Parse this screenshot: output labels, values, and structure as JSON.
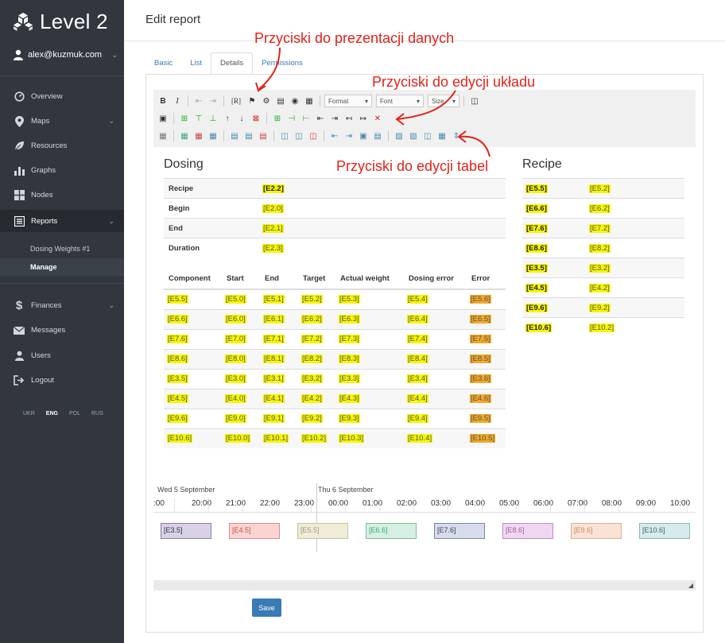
{
  "app": {
    "title": "Level 2",
    "user": "alex@kuzmuk.com"
  },
  "nav": {
    "overview": "Overview",
    "maps": "Maps",
    "resources": "Resources",
    "graphs": "Graphs",
    "nodes": "Nodes",
    "reports": "Reports",
    "sub_dosing": "Dosing Weights #1",
    "sub_manage": "Manage",
    "finances": "Finances",
    "messages": "Messages",
    "users": "Users",
    "logout": "Logout",
    "langs": [
      "UKR",
      "ENG",
      "POL",
      "RUS"
    ]
  },
  "page": {
    "title": "Edit report"
  },
  "tabs": [
    "Basic",
    "List",
    "Details",
    "Permissions"
  ],
  "toolbar": {
    "format": "Format",
    "font": "Font",
    "size": "Size",
    "r_btn": "[R]"
  },
  "annotations": {
    "data": "Przyciski do prezentacji danych",
    "layout": "Przyciski do edycji układu",
    "tables": "Przyciski do edycji tabel"
  },
  "dosing": {
    "title": "Dosing",
    "rows": [
      {
        "label": "Recipe",
        "value": "[E2.2]"
      },
      {
        "label": "Begin",
        "value": "[E2.0]"
      },
      {
        "label": "End",
        "value": "[E2.1]"
      },
      {
        "label": "Duration",
        "value": "[E2.3]"
      }
    ]
  },
  "components": {
    "headers": [
      "Component",
      "Start",
      "End",
      "Target",
      "Actual weight",
      "Dosing error",
      "Error"
    ],
    "rows": [
      [
        "[E5.5]",
        "[E5.0]",
        "[E5.1]",
        "[E5.2]",
        "[E5.3]",
        "[E5.4]",
        "[E5.6]"
      ],
      [
        "[E6.6]",
        "[E6.0]",
        "[E6.1]",
        "[E6.2]",
        "[E6.3]",
        "[E6.4]",
        "[E6.5]"
      ],
      [
        "[E7.6]",
        "[E7.0]",
        "[E7.1]",
        "[E7.2]",
        "[E7.3]",
        "[E7.4]",
        "[E7.5]"
      ],
      [
        "[E8.6]",
        "[E8.0]",
        "[E8.1]",
        "[E8.2]",
        "[E8.3]",
        "[E8.4]",
        "[E8.5]"
      ],
      [
        "[E3.5]",
        "[E3.0]",
        "[E3.1]",
        "[E3.2]",
        "[E3.3]",
        "[E3.4]",
        "[E3.6]"
      ],
      [
        "[E4.5]",
        "[E4.0]",
        "[E4.1]",
        "[E4.2]",
        "[E4.3]",
        "[E4.4]",
        "[E4.6]"
      ],
      [
        "[E9.6]",
        "[E9.0]",
        "[E9.1]",
        "[E9.2]",
        "[E9.3]",
        "[E9.4]",
        "[E9.5]"
      ],
      [
        "[E10.6]",
        "[E10.0]",
        "[E10.1]",
        "[E10.2]",
        "[E10.3]",
        "[E10.4]",
        "[E10.5]"
      ]
    ]
  },
  "recipe": {
    "title": "Recipe",
    "rows": [
      [
        "[E5.5]",
        "[E5.2]"
      ],
      [
        "[E6.6]",
        "[E6.2]"
      ],
      [
        "[E7.6]",
        "[E7.2]"
      ],
      [
        "[E8.6]",
        "[E8.2]"
      ],
      [
        "[E3.5]",
        "[E3.2]"
      ],
      [
        "[E4.5]",
        "[E4.2]"
      ],
      [
        "[E9.6]",
        "[E9.2]"
      ],
      [
        "[E10.6]",
        "[E10.2]"
      ]
    ]
  },
  "timeline": {
    "day1": "Wed 5 September",
    "day2": "Thu 6 September",
    "ticks": [
      ":00",
      "20:00",
      "21:00",
      "22:00",
      "23:00",
      "00:00",
      "01:00",
      "02:00",
      "03:00",
      "04:00",
      "05:00",
      "06:00",
      "07:00",
      "08:00",
      "09:00",
      "10:00"
    ],
    "bars": [
      {
        "label": "[E3.5]",
        "bg": "#d9d2e6",
        "border": "#8a7aa6",
        "color": "#333"
      },
      {
        "label": "[E4.5]",
        "bg": "#fbd3d3",
        "border": "#e08a8a",
        "color": "#b54"
      },
      {
        "label": "[E5.5]",
        "bg": "#efedd8",
        "border": "#c8c49a",
        "color": "#998"
      },
      {
        "label": "[E6.6]",
        "bg": "#d6efe2",
        "border": "#7fbf9c",
        "color": "#3a7"
      },
      {
        "label": "[E7.6]",
        "bg": "#d6dcec",
        "border": "#7b86ad",
        "color": "#345"
      },
      {
        "label": "[E8.6]",
        "bg": "#efd8ef",
        "border": "#c48bc4",
        "color": "#a5a"
      },
      {
        "label": "[E9.6]",
        "bg": "#f9e2d6",
        "border": "#e0b090",
        "color": "#c85"
      },
      {
        "label": "[E10.6]",
        "bg": "#d7ebea",
        "border": "#86b9b6",
        "color": "#366"
      }
    ]
  },
  "save": "Save"
}
